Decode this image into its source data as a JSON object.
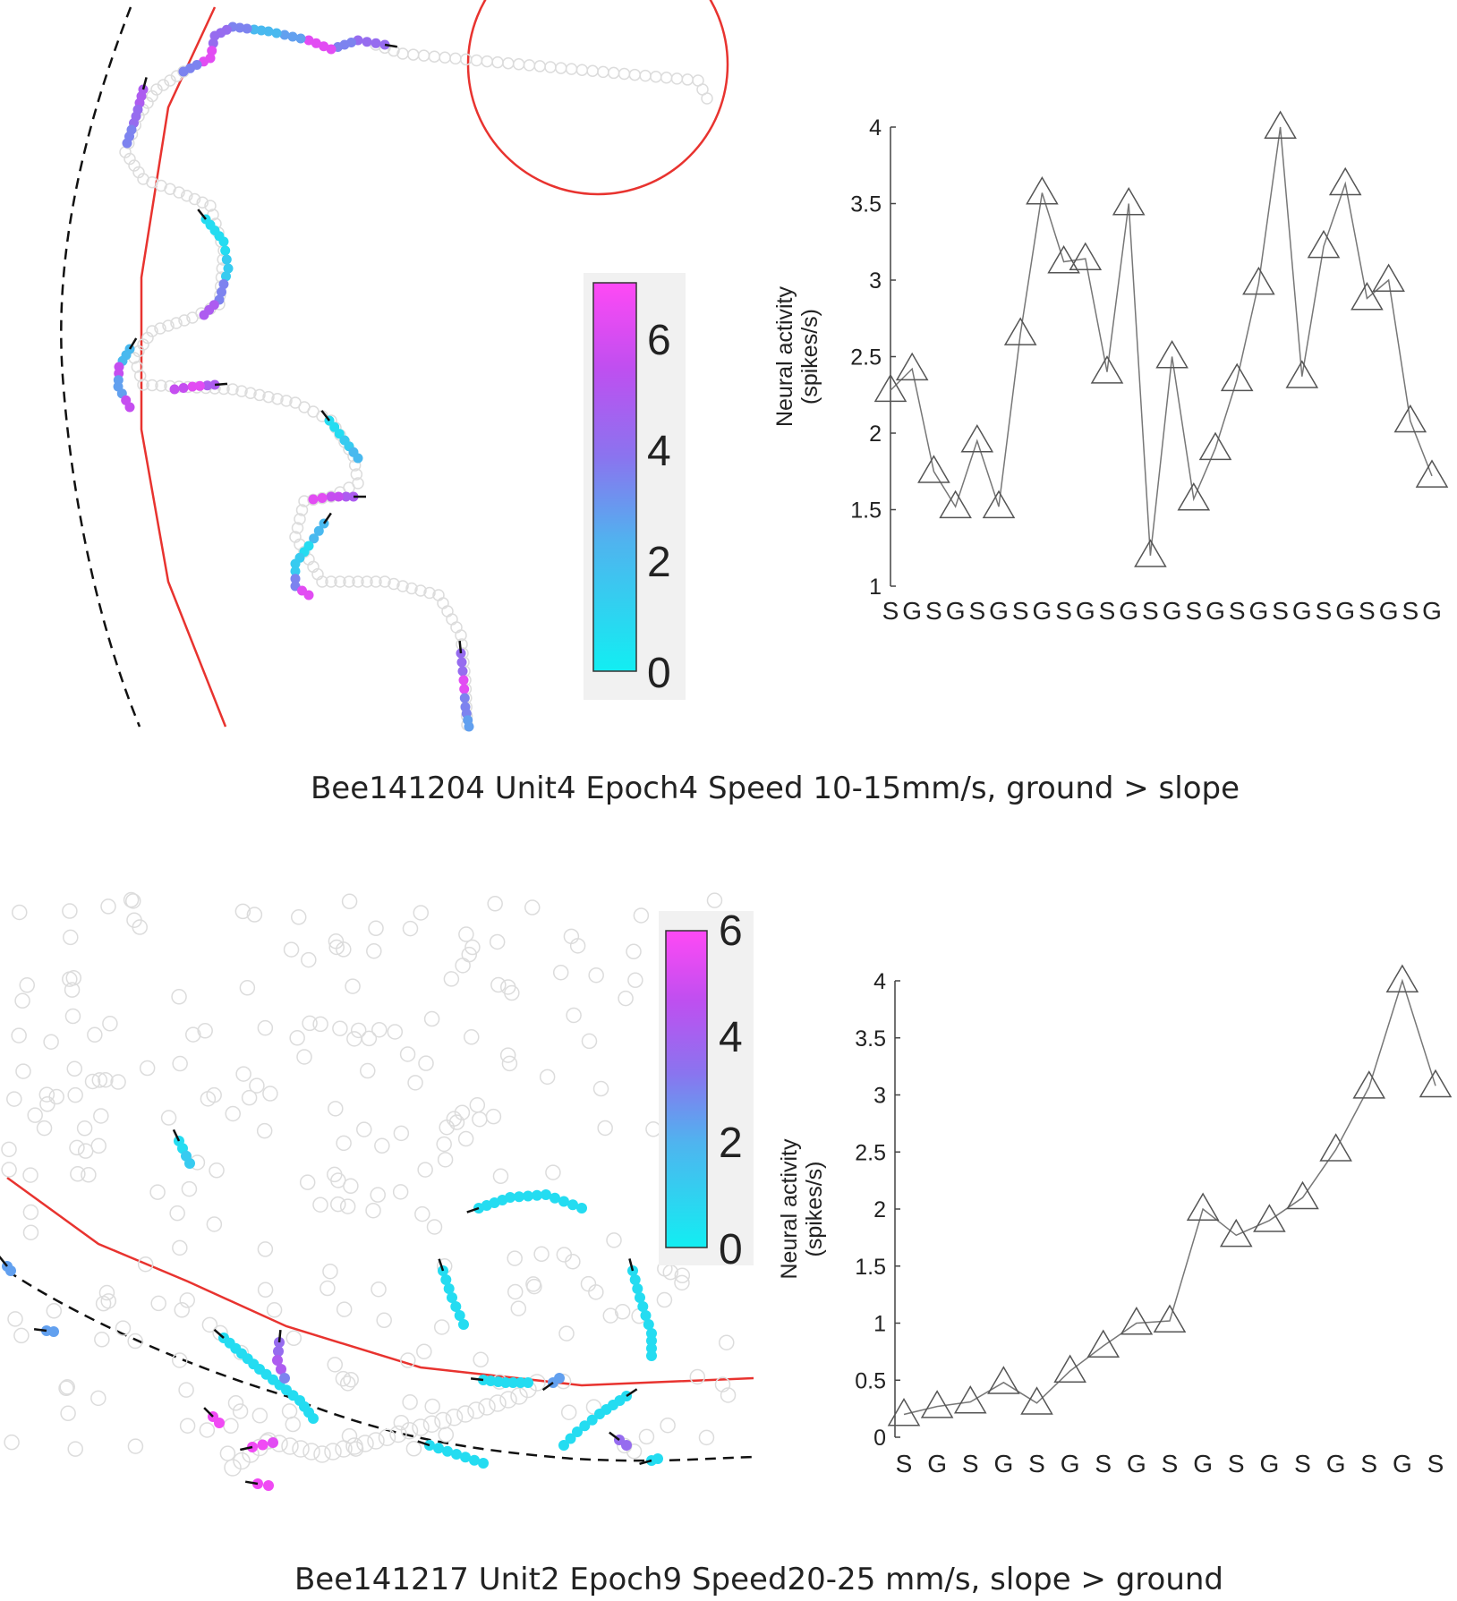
{
  "colors": {
    "speed_low": "#12eef2",
    "speed_mid": "#6e8ff0",
    "speed_high": "#ff49f5",
    "boundary": "#e8332f",
    "dashed": "#111111",
    "line": "#777777"
  },
  "panels": [
    {
      "caption": "Bee141204 Unit4 Epoch4 Speed 10-15mm/s, ground > slope",
      "colorbar": {
        "ticks": [
          "0",
          "2",
          "4",
          "6"
        ],
        "min": 0,
        "max": 7
      },
      "trajectory_map": {
        "boundary_line": "red",
        "dashed_line": "black",
        "circle": "red",
        "colored_segments": 12
      }
    },
    {
      "caption": "Bee141217 Unit2 Epoch9 Speed20-25 mm/s, slope > ground",
      "colorbar": {
        "ticks": [
          "0",
          "2",
          "4",
          "6"
        ],
        "min": 0,
        "max": 6
      },
      "trajectory_map": {
        "boundary_line": "red",
        "dashed_line": "black",
        "colored_segments": 16
      }
    }
  ],
  "chart_data": [
    {
      "type": "line",
      "marker": "triangle",
      "ylabel_line1": "Neural activity",
      "ylabel_line2": "(spikes/s)",
      "ylim": [
        1,
        4
      ],
      "yticks": [
        "1",
        "1.5",
        "2",
        "2.5",
        "3",
        "3.5",
        "4"
      ],
      "categories": [
        "S",
        "G",
        "S",
        "G",
        "S",
        "G",
        "S",
        "G",
        "S",
        "G",
        "S",
        "G",
        "S",
        "G",
        "S",
        "G",
        "S",
        "G",
        "S",
        "G",
        "S",
        "G",
        "S",
        "G",
        "S",
        "G"
      ],
      "values": [
        2.28,
        2.42,
        1.75,
        1.52,
        1.95,
        1.52,
        2.65,
        3.57,
        3.12,
        3.14,
        2.4,
        3.5,
        1.2,
        2.5,
        1.57,
        1.9,
        2.35,
        2.98,
        4.0,
        2.37,
        3.22,
        3.63,
        2.88,
        3.0,
        2.08,
        1.72
      ]
    },
    {
      "type": "line",
      "marker": "triangle",
      "ylabel_line1": "Neural activity",
      "ylabel_line2": "(spikes/s)",
      "ylim": [
        0,
        4
      ],
      "yticks": [
        "0",
        "0.5",
        "1",
        "1.5",
        "2",
        "2.5",
        "3",
        "3.5",
        "4"
      ],
      "categories": [
        "S",
        "G",
        "S",
        "G",
        "S",
        "G",
        "S",
        "G",
        "S",
        "G",
        "S",
        "G",
        "S",
        "G",
        "S",
        "G",
        "S"
      ],
      "values": [
        0.2,
        0.27,
        0.31,
        0.48,
        0.3,
        0.58,
        0.8,
        1.0,
        1.02,
        2.0,
        1.77,
        1.9,
        2.1,
        2.52,
        3.07,
        4.0,
        3.08
      ]
    }
  ]
}
